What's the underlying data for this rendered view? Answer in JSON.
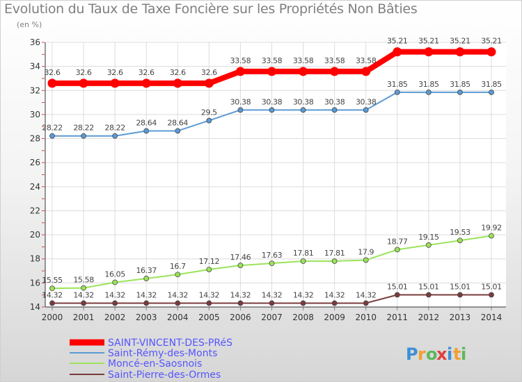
{
  "chart_data": {
    "type": "line",
    "title": "Evolution du Taux de Taxe Foncière sur les Propriétés Non Bâties",
    "subtitle": "(en %)",
    "x": [
      "2000",
      "2001",
      "2002",
      "2003",
      "2004",
      "2005",
      "2006",
      "2007",
      "2008",
      "2009",
      "2010",
      "2011",
      "2012",
      "2013",
      "2014"
    ],
    "ylim": [
      14,
      36
    ],
    "yticks": [
      14,
      16,
      18,
      20,
      22,
      24,
      26,
      28,
      30,
      32,
      34,
      36
    ],
    "grid": true,
    "legend_position": "bottom-left",
    "series": [
      {
        "name": "SAINT-VINCENT-DES-PRéS",
        "color": "#ff0000",
        "values": [
          32.6,
          32.6,
          32.6,
          32.6,
          32.6,
          32.6,
          33.58,
          33.58,
          33.58,
          33.58,
          33.58,
          35.21,
          35.21,
          35.21,
          35.21
        ],
        "labels": [
          "32.6",
          "32.6",
          "32.6",
          "32.6",
          "32.6",
          "32.6",
          "33.58",
          "33.58",
          "33.58",
          "33.58",
          "33.58",
          "35.21",
          "35.21",
          "35.21",
          "35.21"
        ]
      },
      {
        "name": "Saint-Rémy-des-Monts",
        "color": "#5b9bd5",
        "values": [
          28.22,
          28.22,
          28.22,
          28.64,
          28.64,
          29.5,
          30.38,
          30.38,
          30.38,
          30.38,
          30.38,
          31.85,
          31.85,
          31.85,
          31.85
        ],
        "labels": [
          "28.22",
          "28.22",
          "28.22",
          "28.64",
          "28.64",
          "29.5",
          "30.38",
          "30.38",
          "30.38",
          "30.38",
          "30.38",
          "31.85",
          "31.85",
          "31.85",
          "31.85"
        ]
      },
      {
        "name": "Moncé-en-Saosnois",
        "color": "#9be35a",
        "values": [
          15.55,
          15.58,
          16.05,
          16.37,
          16.7,
          17.12,
          17.46,
          17.63,
          17.81,
          17.81,
          17.9,
          18.77,
          19.15,
          19.53,
          19.92
        ],
        "labels": [
          "15.55",
          "15.58",
          "16.05",
          "16.37",
          "16.7",
          "17.12",
          "17.46",
          "17.63",
          "17.81",
          "17.81",
          "17.9",
          "18.77",
          "19.15",
          "19.53",
          "19.92"
        ]
      },
      {
        "name": "Saint-Pierre-des-Ormes",
        "color": "#7a3b3b",
        "values": [
          14.32,
          14.32,
          14.32,
          14.32,
          14.32,
          14.32,
          14.32,
          14.32,
          14.32,
          14.32,
          14.32,
          15.01,
          15.01,
          15.01,
          15.01
        ],
        "labels": [
          "14.32",
          "14.32",
          "14.32",
          "14.32",
          "14.32",
          "14.32",
          "14.32",
          "14.32",
          "14.32",
          "14.32",
          "14.32",
          "15.01",
          "15.01",
          "15.01",
          "15.01"
        ]
      }
    ]
  },
  "logo": {
    "letters": [
      "P",
      "r",
      "o",
      "x",
      "i",
      "t",
      "i"
    ],
    "colors": [
      "#3d8fd6",
      "#f0a030",
      "#5cb85c",
      "#e04040",
      "#3d8fd6",
      "#f0a030",
      "#5cb85c"
    ]
  }
}
